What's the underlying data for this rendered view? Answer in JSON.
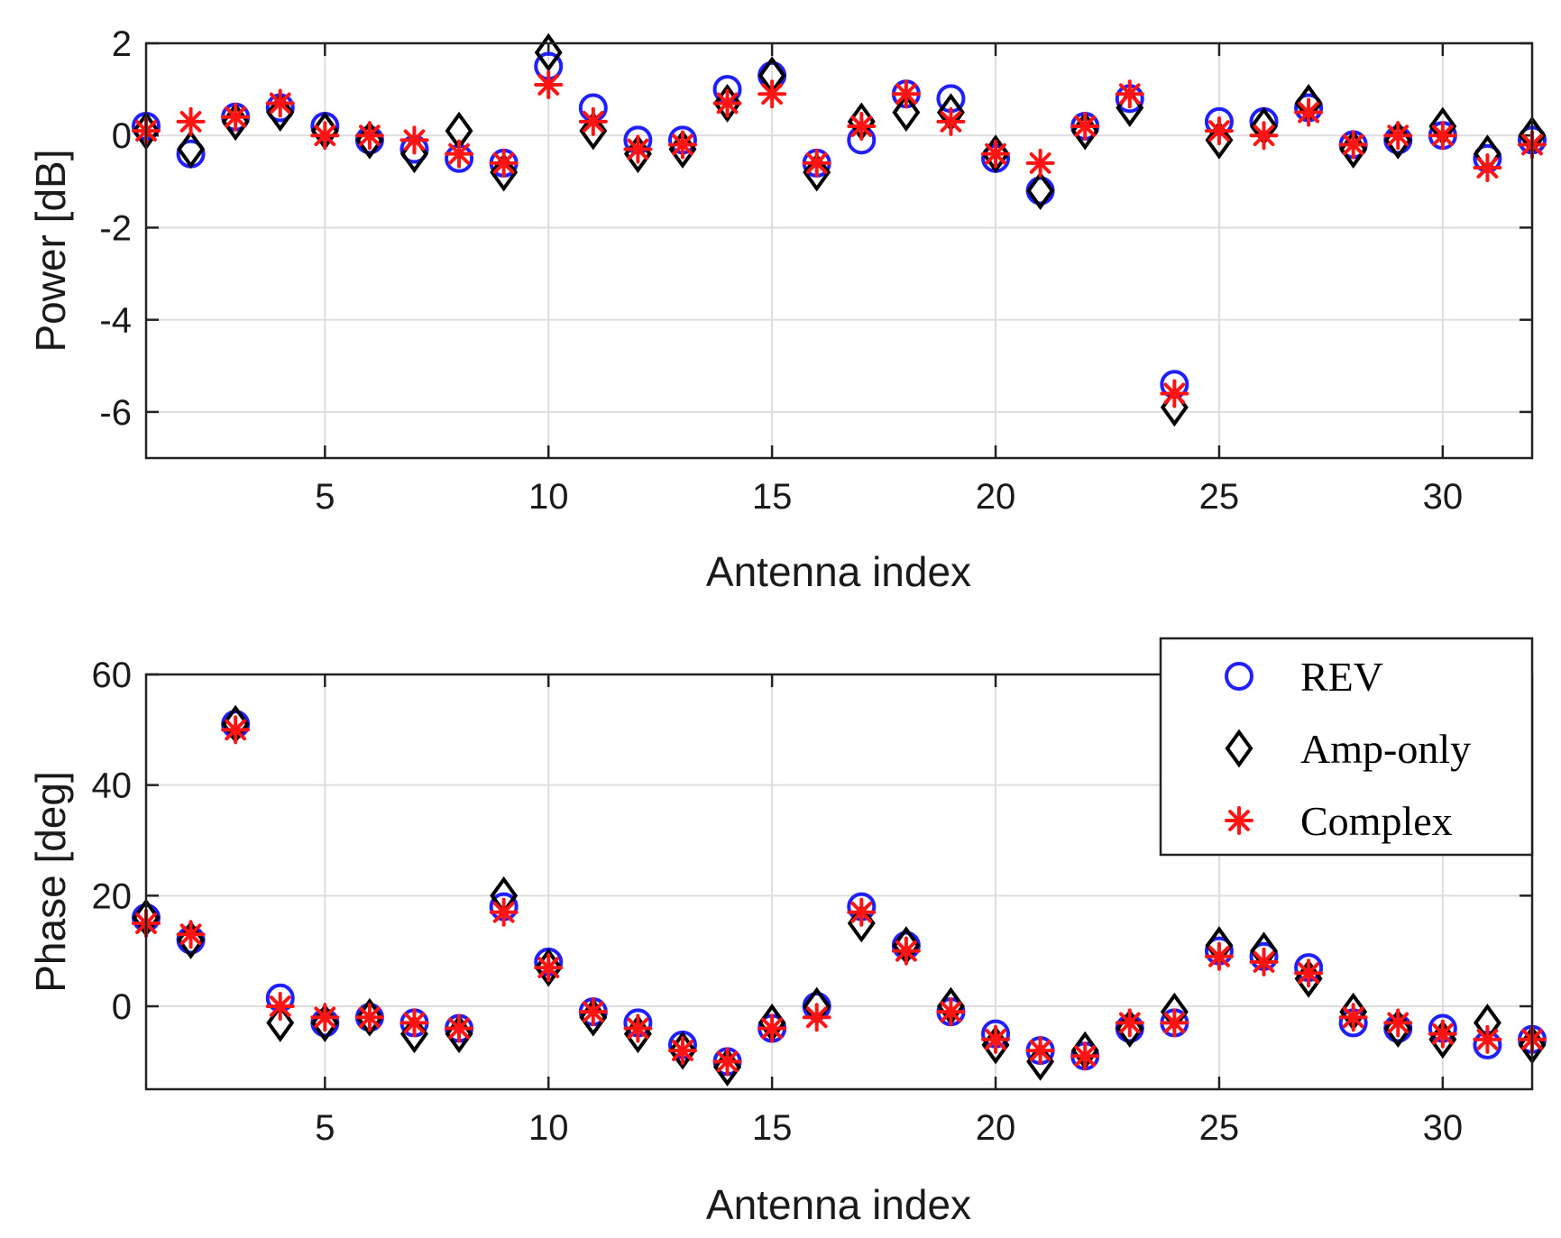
{
  "colors": {
    "rev": "#1f1fff",
    "amp_only": "#000000",
    "complex": "#ff1414",
    "grid": "#dddddd",
    "axis": "#222222"
  },
  "legend": {
    "entries": [
      {
        "key": "rev",
        "label": "REV",
        "marker": "circle"
      },
      {
        "key": "amp_only",
        "label": "Amp-only",
        "marker": "diamond"
      },
      {
        "key": "complex",
        "label": "Complex",
        "marker": "asterisk"
      }
    ],
    "placement": "top-right of phase plot"
  },
  "chart_data": [
    {
      "id": "power",
      "type": "scatter",
      "title": "",
      "xlabel": "Antenna index",
      "ylabel": "Power [dB]",
      "xlim": [
        1,
        32
      ],
      "ylim": [
        -7,
        2
      ],
      "xticks": [
        5,
        10,
        15,
        20,
        25,
        30
      ],
      "yticks": [
        2,
        0,
        -2,
        -4,
        -6
      ],
      "grid": true,
      "x": [
        1,
        2,
        3,
        4,
        5,
        6,
        7,
        8,
        9,
        10,
        11,
        12,
        13,
        14,
        15,
        16,
        17,
        18,
        19,
        20,
        21,
        22,
        23,
        24,
        25,
        26,
        27,
        28,
        29,
        30,
        31,
        32
      ],
      "series": [
        {
          "key": "rev",
          "name": "REV",
          "values": [
            0.2,
            -0.4,
            0.4,
            0.6,
            0.2,
            -0.1,
            -0.3,
            -0.5,
            -0.6,
            1.5,
            0.6,
            -0.1,
            -0.1,
            1.0,
            1.3,
            -0.6,
            -0.1,
            0.9,
            0.8,
            -0.5,
            -1.2,
            0.2,
            0.8,
            -5.4,
            0.3,
            0.3,
            0.6,
            -0.2,
            -0.1,
            0.0,
            -0.5,
            -0.1
          ]
        },
        {
          "key": "amp_only",
          "name": "Amp-only",
          "values": [
            0.1,
            -0.3,
            0.3,
            0.5,
            0.1,
            -0.1,
            -0.4,
            0.1,
            -0.8,
            1.8,
            0.1,
            -0.4,
            -0.3,
            0.7,
            1.3,
            -0.8,
            0.3,
            0.5,
            0.5,
            -0.4,
            -1.2,
            0.1,
            0.6,
            -5.9,
            -0.1,
            0.2,
            0.7,
            -0.3,
            -0.1,
            0.2,
            -0.4,
            0.0
          ]
        },
        {
          "key": "complex",
          "name": "Complex",
          "values": [
            0.1,
            0.3,
            0.4,
            0.7,
            0.0,
            0.0,
            -0.1,
            -0.4,
            -0.6,
            1.1,
            0.3,
            -0.3,
            -0.2,
            0.7,
            0.9,
            -0.6,
            0.2,
            0.9,
            0.3,
            -0.4,
            -0.6,
            0.2,
            0.9,
            -5.6,
            0.1,
            0.0,
            0.5,
            -0.2,
            0.0,
            0.0,
            -0.7,
            -0.2
          ]
        }
      ]
    },
    {
      "id": "phase",
      "type": "scatter",
      "title": "",
      "xlabel": "Antenna index",
      "ylabel": "Phase [deg]",
      "xlim": [
        1,
        32
      ],
      "ylim": [
        -15,
        60
      ],
      "xticks": [
        5,
        10,
        15,
        20,
        25,
        30
      ],
      "yticks": [
        60,
        40,
        20,
        0
      ],
      "grid": true,
      "x": [
        1,
        2,
        3,
        4,
        5,
        6,
        7,
        8,
        9,
        10,
        11,
        12,
        13,
        14,
        15,
        16,
        17,
        18,
        19,
        20,
        21,
        22,
        23,
        24,
        25,
        26,
        27,
        28,
        29,
        30,
        31,
        32
      ],
      "series": [
        {
          "key": "rev",
          "name": "REV",
          "values": [
            16,
            12,
            51,
            1.5,
            -3,
            -2,
            -3,
            -4,
            18,
            8,
            -1,
            -3,
            -7,
            -10,
            -4,
            0,
            18,
            11,
            -1,
            -5,
            -8,
            -9,
            -4,
            -3,
            10,
            9,
            7,
            -3,
            -4,
            -4,
            -7,
            -6
          ]
        },
        {
          "key": "amp_only",
          "name": "Amp-only",
          "values": [
            16,
            12,
            51,
            -3,
            -3,
            -2,
            -5,
            -5,
            20,
            7,
            -2,
            -5,
            -8,
            -11,
            -3,
            0,
            15,
            11,
            0,
            -7,
            -10,
            -8,
            -4,
            -1,
            11,
            10,
            5,
            -1,
            -4,
            -6,
            -3,
            -7
          ]
        },
        {
          "key": "complex",
          "name": "Complex",
          "values": [
            15,
            13,
            50,
            0,
            -2,
            -2,
            -3,
            -4,
            17,
            7,
            -1,
            -4,
            -8,
            -10,
            -4,
            -2,
            17,
            10,
            -1,
            -6,
            -8,
            -9,
            -3,
            -3,
            9,
            8,
            6,
            -2,
            -3,
            -5,
            -6,
            -6
          ]
        }
      ]
    }
  ]
}
